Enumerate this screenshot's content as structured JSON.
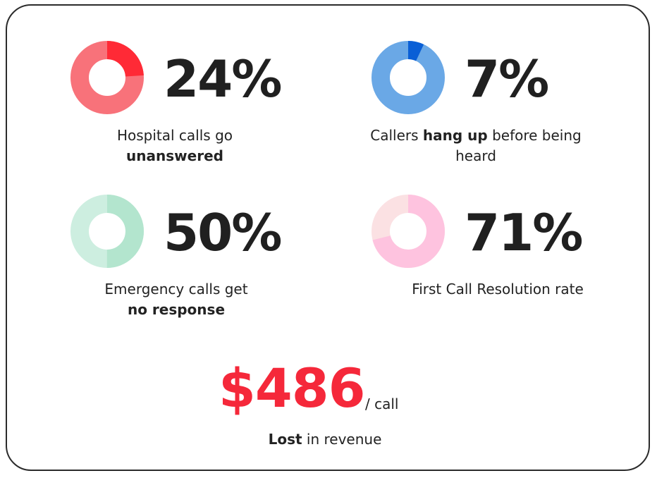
{
  "chart_data": [
    {
      "type": "pie",
      "value": 24,
      "value_label": "24%",
      "description_pre": "Hospital calls go",
      "description_bold": "unanswered",
      "description_post": "",
      "colors": {
        "highlight": "#ff2a36",
        "base": "#f8727a"
      }
    },
    {
      "type": "pie",
      "value": 7,
      "value_label": "7%",
      "description_pre": "Callers",
      "description_bold": "hang up",
      "description_post": "before being heard",
      "colors": {
        "highlight": "#0a5fd6",
        "base": "#6aa8e6"
      }
    },
    {
      "type": "pie",
      "value": 50,
      "value_label": "50%",
      "description_pre": "Emergency calls get",
      "description_bold": "no response",
      "description_post": "",
      "colors": {
        "highlight": "#b3e5ce",
        "base": "#cdeee0"
      }
    },
    {
      "type": "pie",
      "value": 71,
      "value_label": "71%",
      "description_pre": "First Call Resolution rate",
      "description_bold": "",
      "description_post": "",
      "colors": {
        "highlight": "#fec3df",
        "base": "#fbe1e3"
      }
    }
  ],
  "revenue": {
    "amount": "$486",
    "unit": "/ call",
    "note_bold": "Lost",
    "note_rest": "in revenue",
    "color": "#f5283a"
  }
}
